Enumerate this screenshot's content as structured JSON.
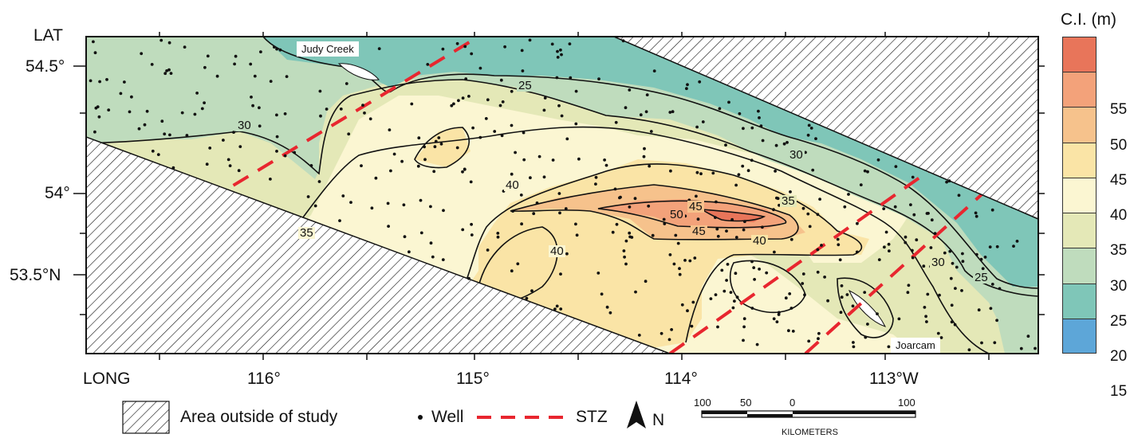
{
  "map": {
    "lat_axis_label": "LAT",
    "long_axis_label": "LONG",
    "lat_ticks": [
      "54.5°",
      "54°",
      "53.5°N"
    ],
    "long_ticks": [
      "116°",
      "115°",
      "114°",
      "113°W"
    ],
    "places": [
      "Judy Creek",
      "Joarcam"
    ],
    "contour_labels": {
      "c30_west": "30",
      "c25_north": "25",
      "c40_a": "40",
      "c35_west": "35",
      "c30_east": "30",
      "c35_east": "35",
      "c45_a": "45",
      "c50": "50",
      "c45_b": "45",
      "c40_b": "40",
      "c40_c": "40",
      "c30_se": "30",
      "c25_se": "25"
    }
  },
  "scale": {
    "title": "C.I. (m)",
    "classes": [
      {
        "label": "",
        "color": "#e8755a"
      },
      {
        "label": "55",
        "color": "#f3a27a"
      },
      {
        "label": "50",
        "color": "#f6c28c"
      },
      {
        "label": "45",
        "color": "#fae4a6"
      },
      {
        "label": "40",
        "color": "#fbf6d2"
      },
      {
        "label": "35",
        "color": "#e4e8b7"
      },
      {
        "label": "30",
        "color": "#bfdcbd"
      },
      {
        "label": "25",
        "color": "#7fc6b8"
      },
      {
        "label": "20",
        "color": "#5da6d8"
      },
      {
        "label": "15",
        "color": ""
      }
    ]
  },
  "legend": {
    "outside_label": "Area outside of study",
    "well_label": "Well",
    "stz_label": "STZ",
    "north_label": "N"
  },
  "scalebar": {
    "ticks": [
      "100",
      "50",
      "0",
      "100"
    ],
    "units": "KILOMETERS"
  },
  "colors": {
    "stz": "#e8262f",
    "contour": "#111111",
    "hatch": "#111111"
  }
}
